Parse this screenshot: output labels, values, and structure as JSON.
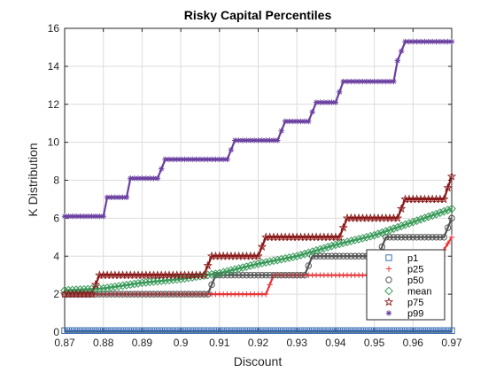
{
  "chart_data": {
    "type": "line",
    "title": "Risky Capital Percentiles",
    "xlabel": "Discount",
    "ylabel": "K Distribution",
    "xlim": [
      0.87,
      0.97
    ],
    "ylim": [
      0,
      16
    ],
    "xticks": [
      "0.87",
      "0.88",
      "0.89",
      "0.9",
      "0.91",
      "0.92",
      "0.93",
      "0.94",
      "0.95",
      "0.96",
      "0.97"
    ],
    "xtick_values": [
      0.87,
      0.88,
      0.89,
      0.9,
      0.91,
      0.92,
      0.93,
      0.94,
      0.95,
      0.96,
      0.97
    ],
    "yticks": [
      "0",
      "2",
      "4",
      "6",
      "8",
      "10",
      "12",
      "14",
      "16"
    ],
    "ytick_values": [
      0,
      2,
      4,
      6,
      8,
      10,
      12,
      14,
      16
    ],
    "grid": true,
    "legend_position": "bottom-right",
    "series": [
      {
        "name": "p1",
        "color": "#3a6fb5",
        "marker": "square",
        "points": [
          [
            0.87,
            0.08
          ],
          [
            0.97,
            0.08
          ]
        ]
      },
      {
        "name": "p25",
        "color": "#e8373a",
        "marker": "plus",
        "points": [
          [
            0.87,
            2.0
          ],
          [
            0.922,
            2.0
          ],
          [
            0.924,
            3.0
          ],
          [
            0.955,
            3.0
          ],
          [
            0.957,
            4.0
          ],
          [
            0.967,
            4.0
          ],
          [
            0.97,
            5.0
          ]
        ]
      },
      {
        "name": "p50",
        "color": "#555555",
        "marker": "circle",
        "points": [
          [
            0.87,
            2.0
          ],
          [
            0.907,
            2.0
          ],
          [
            0.909,
            3.0
          ],
          [
            0.932,
            3.0
          ],
          [
            0.934,
            4.0
          ],
          [
            0.951,
            4.0
          ],
          [
            0.953,
            5.0
          ],
          [
            0.968,
            5.0
          ],
          [
            0.97,
            6.0
          ]
        ]
      },
      {
        "name": "mean",
        "color": "#3a9a5a",
        "marker": "diamond",
        "points": [
          [
            0.87,
            2.2
          ],
          [
            0.88,
            2.3
          ],
          [
            0.89,
            2.6
          ],
          [
            0.9,
            2.8
          ],
          [
            0.91,
            3.1
          ],
          [
            0.92,
            3.6
          ],
          [
            0.93,
            4.0
          ],
          [
            0.94,
            4.6
          ],
          [
            0.95,
            5.1
          ],
          [
            0.96,
            5.8
          ],
          [
            0.97,
            6.5
          ]
        ]
      },
      {
        "name": "p75",
        "color": "#8b1a1a",
        "marker": "star",
        "points": [
          [
            0.87,
            2.0
          ],
          [
            0.877,
            2.0
          ],
          [
            0.879,
            3.0
          ],
          [
            0.906,
            3.0
          ],
          [
            0.908,
            4.0
          ],
          [
            0.92,
            4.0
          ],
          [
            0.922,
            5.0
          ],
          [
            0.941,
            5.0
          ],
          [
            0.943,
            6.0
          ],
          [
            0.956,
            6.0
          ],
          [
            0.958,
            7.0
          ],
          [
            0.968,
            7.0
          ],
          [
            0.97,
            8.2
          ]
        ]
      },
      {
        "name": "p99",
        "color": "#6a3fa0",
        "marker": "asterisk",
        "points": [
          [
            0.87,
            6.1
          ],
          [
            0.88,
            6.1
          ],
          [
            0.881,
            7.1
          ],
          [
            0.886,
            7.1
          ],
          [
            0.887,
            8.1
          ],
          [
            0.894,
            8.1
          ],
          [
            0.896,
            9.1
          ],
          [
            0.912,
            9.1
          ],
          [
            0.914,
            10.1
          ],
          [
            0.925,
            10.1
          ],
          [
            0.927,
            11.1
          ],
          [
            0.933,
            11.1
          ],
          [
            0.935,
            12.1
          ],
          [
            0.94,
            12.1
          ],
          [
            0.942,
            13.2
          ],
          [
            0.955,
            13.2
          ],
          [
            0.956,
            14.3
          ],
          [
            0.958,
            15.3
          ],
          [
            0.97,
            15.3
          ]
        ]
      }
    ]
  }
}
